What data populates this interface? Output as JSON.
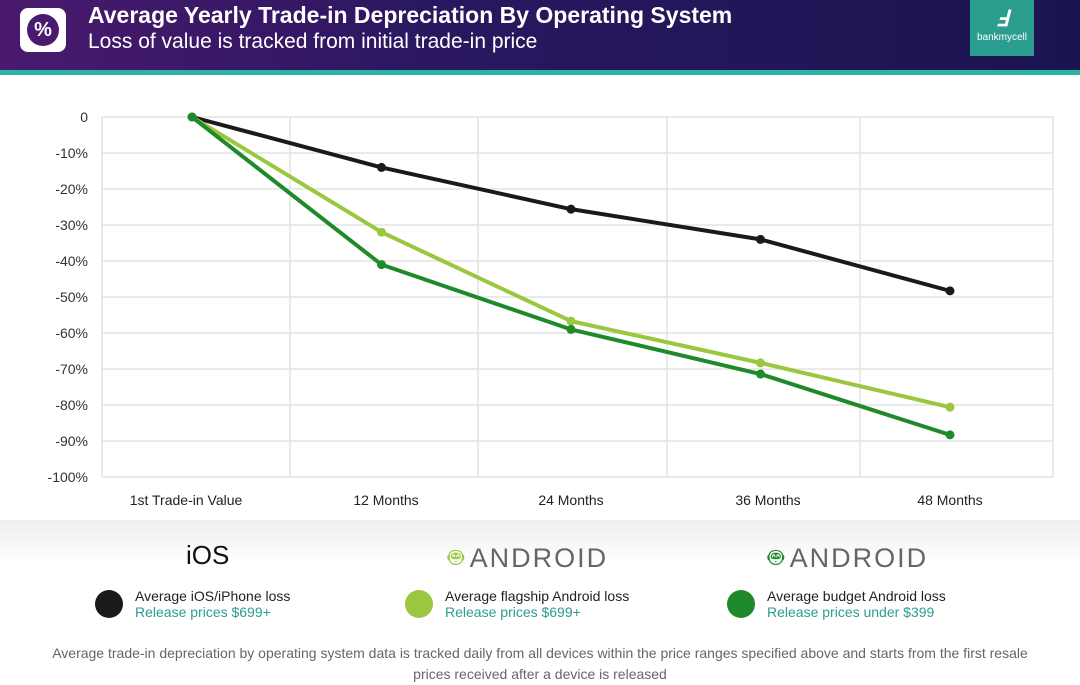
{
  "header": {
    "title": "Average Yearly Trade-in Depreciation By Operating System",
    "subtitle": "Loss of value is tracked from initial trade-in price",
    "icon": "percent-icon",
    "logo_text": "bankmycell"
  },
  "chart_data": {
    "type": "line",
    "title": "Average Yearly Trade-in Depreciation By Operating System",
    "subtitle": "Loss of value is tracked from initial trade-in price",
    "categories": [
      "1st Trade-in Value",
      "12 Months",
      "24 Months",
      "36 Months",
      "48 Months"
    ],
    "y_ticks": [
      "0",
      "-10%",
      "-20%",
      "-30%",
      "-40%",
      "-50%",
      "-60%",
      "-70%",
      "-80%",
      "-90%",
      "-100%"
    ],
    "ylim": [
      -100,
      0
    ],
    "grid": true,
    "legend_placement": "bottom",
    "series": [
      {
        "name": "Average iOS/iPhone loss",
        "color": "#1a1a1a",
        "values": [
          0,
          -14,
          -25.6,
          -34,
          -48.3
        ]
      },
      {
        "name": "Average flagship Android loss",
        "color": "#9ac73f",
        "values": [
          0,
          -32,
          -56.7,
          -68.3,
          -80.6
        ]
      },
      {
        "name": "Average budget Android loss",
        "color": "#1f8a2a",
        "values": [
          0,
          -41,
          -59,
          -71.4,
          -88.3
        ]
      }
    ]
  },
  "os_labels": [
    {
      "name": "iOS",
      "icon": "apple-icon"
    },
    {
      "name": "ANDROID",
      "icon": "android-icon",
      "color": "#9ac73f"
    },
    {
      "name": "ANDROID",
      "icon": "android-icon",
      "color": "#1f8a2a"
    }
  ],
  "legend": [
    {
      "label": "Average iOS/iPhone loss",
      "sub": "Release prices $699+",
      "color": "#1a1a1a"
    },
    {
      "label": "Average flagship Android loss",
      "sub": "Release prices $699+",
      "color": "#9ac73f"
    },
    {
      "label": "Average budget Android loss",
      "sub": "Release prices under $399",
      "color": "#1f8a2a"
    }
  ],
  "footnote": "Average trade-in depreciation by operating system data is tracked daily from all devices within the price ranges specified above and starts from the first resale prices received after a device is released"
}
